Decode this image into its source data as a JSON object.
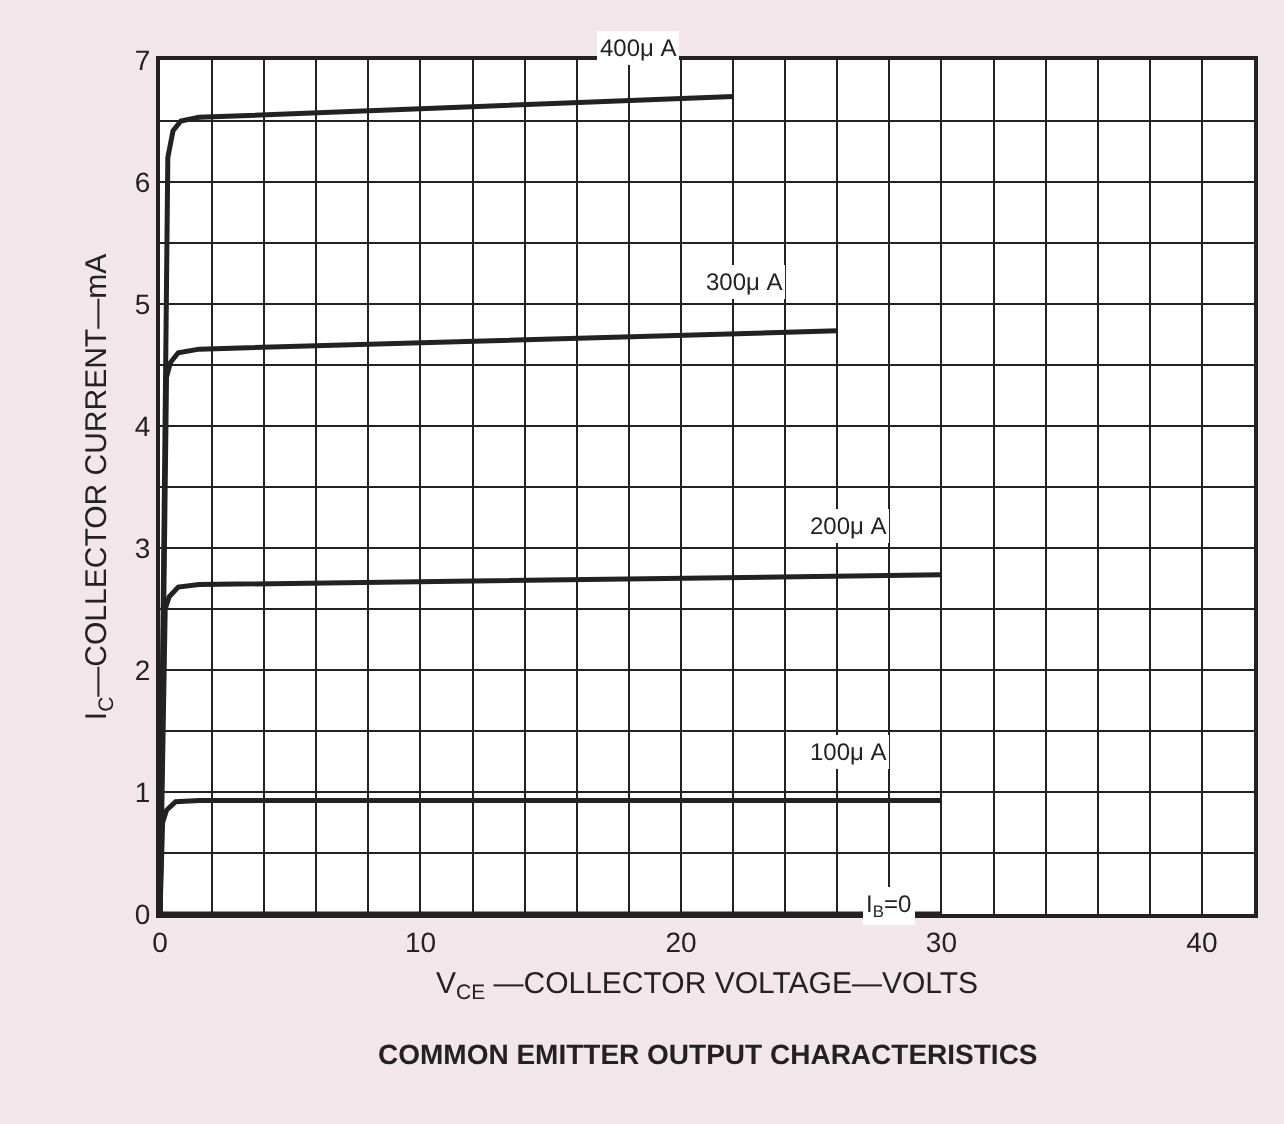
{
  "chart_data": {
    "type": "line",
    "title": "COMMON EMITTER OUTPUT CHARACTERISTICS",
    "xlabel": "V$_{CE}$ —COLLECTOR VOLTAGE—VOLTS",
    "ylabel": "I$_{C}$—COLLECTOR CURRENT—mA",
    "xlim": [
      0,
      42
    ],
    "ylim": [
      0,
      7
    ],
    "xticks": [
      0,
      10,
      20,
      30,
      40
    ],
    "yticks": [
      0,
      1,
      2,
      3,
      4,
      5,
      6,
      7
    ],
    "grid": true,
    "legend": false,
    "marker": "none",
    "line_style": "solid",
    "series": [
      {
        "name": "400μ A",
        "color": "#222222",
        "x": [
          0,
          0.3,
          0.5,
          0.8,
          1.5,
          22
        ],
        "values": [
          0,
          6.2,
          6.42,
          6.5,
          6.53,
          6.7
        ]
      },
      {
        "name": "300μ A",
        "color": "#222222",
        "x": [
          0,
          0.25,
          0.4,
          0.7,
          1.5,
          26
        ],
        "values": [
          0,
          4.4,
          4.52,
          4.6,
          4.63,
          4.78
        ]
      },
      {
        "name": "200μ A",
        "color": "#222222",
        "x": [
          0,
          0.2,
          0.35,
          0.7,
          1.5,
          30
        ],
        "values": [
          0,
          2.5,
          2.6,
          2.68,
          2.7,
          2.78
        ]
      },
      {
        "name": "100μ A",
        "color": "#222222",
        "x": [
          0,
          0.1,
          0.25,
          0.6,
          1.5,
          30
        ],
        "values": [
          0,
          0.75,
          0.85,
          0.92,
          0.93,
          0.93
        ]
      },
      {
        "name": "I$_{B}$=0",
        "color": "#222222",
        "x": [
          0,
          30
        ],
        "values": [
          0,
          0
        ]
      }
    ]
  }
}
